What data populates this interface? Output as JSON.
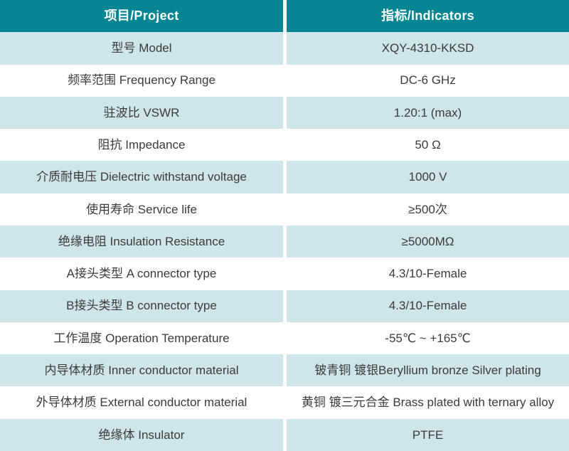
{
  "table": {
    "header": {
      "project": "项目/Project",
      "indicators": "指标/Indicators"
    },
    "rows": [
      {
        "project": "型号 Model",
        "indicator": "XQY-4310-KKSD"
      },
      {
        "project": "频率范围 Frequency Range",
        "indicator": "DC-6 GHz"
      },
      {
        "project": "驻波比 VSWR",
        "indicator": "1.20:1 (max)"
      },
      {
        "project": "阻抗 Impedance",
        "indicator": "50 Ω"
      },
      {
        "project": "介质耐电压 Dielectric withstand voltage",
        "indicator": "1000 V"
      },
      {
        "project": "使用寿命 Service life",
        "indicator": "≥500次"
      },
      {
        "project": "绝缘电阻 Insulation Resistance",
        "indicator": "≥5000MΩ"
      },
      {
        "project": "A接头类型 A connector type",
        "indicator": "4.3/10-Female"
      },
      {
        "project": "B接头类型 B connector type",
        "indicator": "4.3/10-Female"
      },
      {
        "project": "工作温度 Operation Temperature",
        "indicator": "-55℃ ~ +165℃"
      },
      {
        "project": "内导体材质 Inner conductor material",
        "indicator": "铍青铜 镀银Beryllium bronze Silver plating"
      },
      {
        "project": "外导体材质 External conductor material",
        "indicator": "黄铜 镀三元合金 Brass plated with ternary alloy"
      },
      {
        "project": "绝缘体 Insulator",
        "indicator": "PTFE"
      }
    ],
    "colors": {
      "header_bg": "#068693",
      "header_text": "#ffffff",
      "alt_row_bg": "#cee6ea",
      "body_text": "#3b3b3b",
      "divider": "#ffffff"
    }
  }
}
